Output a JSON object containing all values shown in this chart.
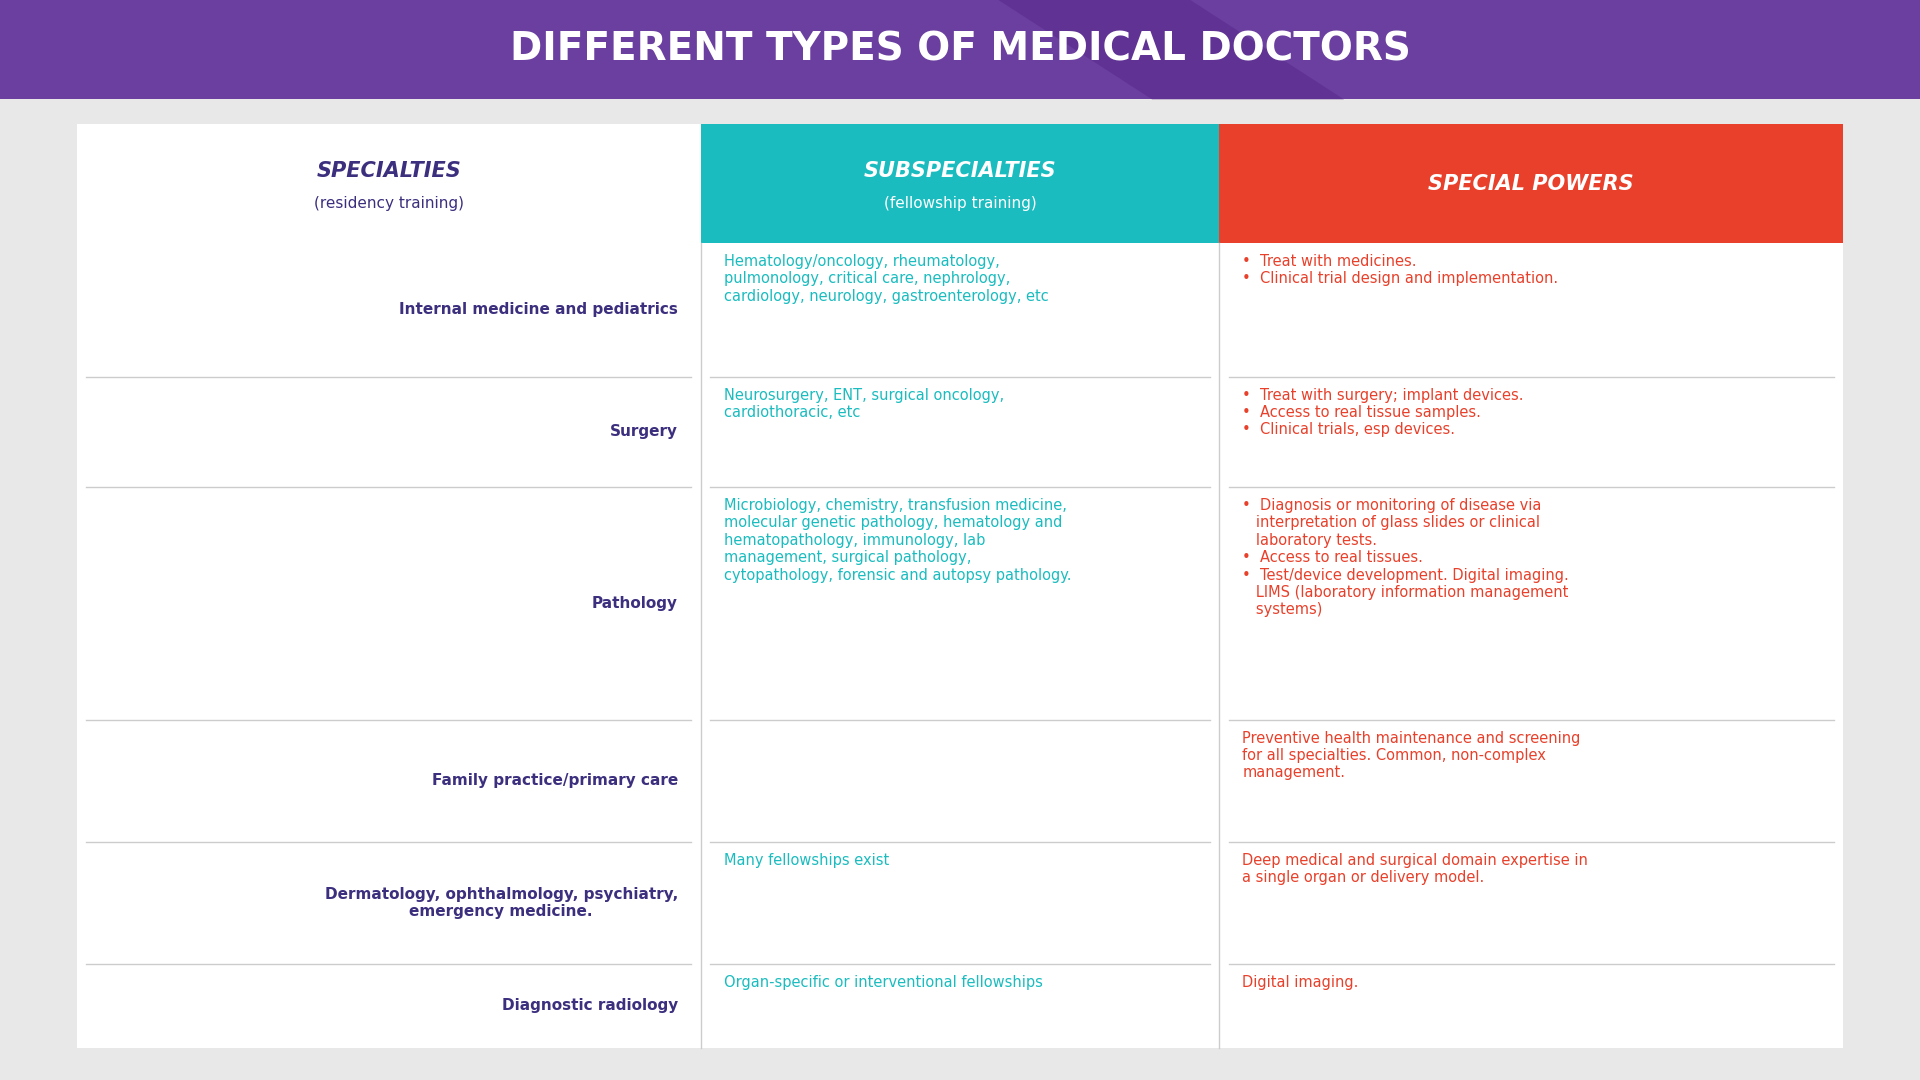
{
  "title": "DIFFERENT TYPES OF MEDICAL DOCTORS",
  "title_color": "#ffffff",
  "header_bg_color": "#6B3FA0",
  "header_teal_color": "#1ABCBF",
  "bg_color": "#e8e8e8",
  "col1_header": "SPECIALTIES",
  "col1_header_sub": "(residency training)",
  "col2_header": "SUBSPECIALTIES",
  "col2_header_sub": "(fellowship training)",
  "col3_header": "SPECIAL POWERS",
  "col2_header_bg": "#1ABCBF",
  "col3_header_bg": "#E8402A",
  "col1_text_color": "#3B2F7E",
  "col2_text_color": "#1ABCBF",
  "col3_text_color": "#E8402A",
  "col1_header_color": "#3B2F7E",
  "rows": [
    {
      "col1": "Internal medicine and pediatrics",
      "col2": "Hematology/oncology, rheumatology,\npulmonology, critical care, nephrology,\ncardiology, neurology, gastroenterology, etc",
      "col3": "•  Treat with medicines.\n•  Clinical trial design and implementation."
    },
    {
      "col1": "Surgery",
      "col2": "Neurosurgery, ENT, surgical oncology,\ncardiothoracic, etc",
      "col3": "•  Treat with surgery; implant devices.\n•  Access to real tissue samples.\n•  Clinical trials, esp devices."
    },
    {
      "col1": "Pathology",
      "col2": "Microbiology, chemistry, transfusion medicine,\nmolecular genetic pathology, hematology and\nhematopathology, immunology, lab\nmanagement, surgical pathology,\ncytopathology, forensic and autopsy pathology.",
      "col3": "•  Diagnosis or monitoring of disease via\n   interpretation of glass slides or clinical\n   laboratory tests.\n•  Access to real tissues.\n•  Test/device development. Digital imaging.\n   LIMS (laboratory information management\n   systems)"
    },
    {
      "col1": "Family practice/primary care",
      "col2": "",
      "col3": "Preventive health maintenance and screening\nfor all specialties. Common, non-complex\nmanagement."
    },
    {
      "col1": "Dermatology, ophthalmology, psychiatry,\nemergency medicine.",
      "col2": "Many fellowships exist",
      "col3": "Deep medical and surgical domain expertise in\na single organ or delivery model."
    },
    {
      "col1": "Diagnostic radiology",
      "col2": "Organ-specific or interventional fellowships",
      "col3": "Digital imaging."
    }
  ]
}
